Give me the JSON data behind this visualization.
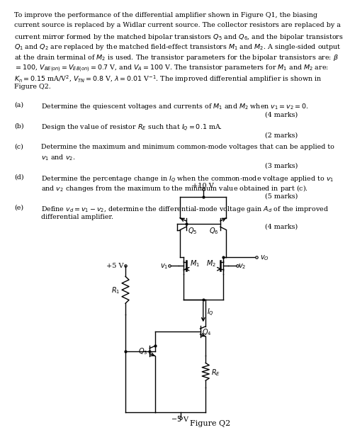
{
  "intro_lines": [
    "To improve the performance of the differential amplifier shown in Figure Q1, the biasing",
    "current source is replaced by a Widlar current source. The collector resistors are replaced by a",
    "current mirror formed by the matched bipolar transistors $Q_5$ and $Q_6$, and the bipolar transistors",
    "$Q_1$ and $Q_2$ are replaced by the matched field-effect transistors $M_1$ and $M_2$. A single-sided output",
    "at the drain terminal of $M_2$ is used. The transistor parameters for the bipolar transistors are: $\\beta$",
    "$= 100$, $V_{BE(on)} = V_{EB(on)} = 0.7$ V, and $V_A = 100$ V. The transistor parameters for $M_1$ and $M_2$ are:",
    "$K_n = 0.15$ mA/V$^2$, $V_{TN} = 0.8$ V, $\\lambda = 0.01$ V$^{-1}$. The improved differential amplifier is shown in",
    "Figure Q2."
  ],
  "questions": [
    {
      "label": "(a)",
      "line1": "Determine the quiescent voltages and currents of $M_1$ and $M_2$ when $v_1 = v_2 = 0$.",
      "line2": null,
      "marks": "(4 marks)"
    },
    {
      "label": "(b)",
      "line1": "Design the value of resistor $R_E$ such that $I_Q = 0.1$ mA.",
      "line2": null,
      "marks": "(2 marks)"
    },
    {
      "label": "(c)",
      "line1": "Determine the maximum and minimum common-mode voltages that can be applied to",
      "line2": "$v_1$ and $v_2$.",
      "marks": "(3 marks)"
    },
    {
      "label": "(d)",
      "line1": "Determine the percentage change in $I_Q$ when the common-mode voltage applied to $v_1$",
      "line2": "and $v_2$ changes from the maximum to the minimum value obtained in part (c).",
      "marks": "(5 marks)"
    },
    {
      "label": "(e)",
      "line1": "Define $v_d = v_1 - v_2$, determine the differential-mode voltage gain $A_d$ of the improved",
      "line2": "differential amplifier.",
      "marks": "(4 marks)"
    }
  ],
  "figure_label": "Figure Q2",
  "bg_color": "#ffffff",
  "cc": "#000000"
}
